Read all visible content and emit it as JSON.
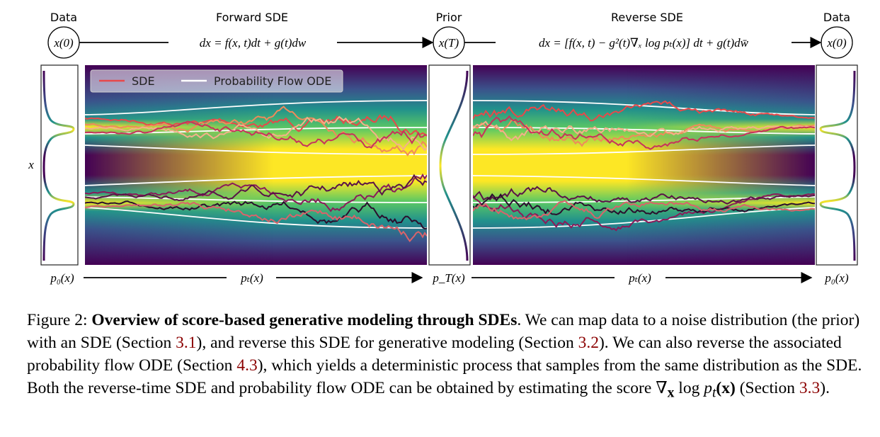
{
  "top_labels": {
    "data_left": "Data",
    "forward": "Forward SDE",
    "prior": "Prior",
    "reverse": "Reverse SDE",
    "data_right": "Data"
  },
  "nodes": {
    "x0_left": "x(0)",
    "xT": "x(T)",
    "x0_right": "x(0)"
  },
  "equations": {
    "forward": "dx = f(x, t)dt + g(t)dw",
    "reverse": "dx = [f(x, t) − g²(t)∇ₓ log pₜ(x)] dt + g(t)dw̄"
  },
  "y_axis_label": "x",
  "legend": {
    "sde": "SDE",
    "ode": "Probability Flow ODE"
  },
  "bottom_labels": {
    "p0_left": "p₀(x)",
    "pt_left": "pₜ(x)",
    "pT": "p_T(x)",
    "pt_right": "pₜ(x)",
    "p0_right": "p₀(x)"
  },
  "colors": {
    "sde_legend": "#e8484a",
    "ode_line": "#ffffff",
    "density_low": "#440154",
    "density_mid": "#21918c",
    "density_high": "#fde725"
  },
  "caption": {
    "prefix": "Figure 2: ",
    "title": "Overview of score-based generative modeling through SDEs",
    "text1": ". We can map data to a noise distribution (the prior) with an SDE (Section ",
    "ref1": "3.1",
    "text2": "), and reverse this SDE for generative modeling (Section ",
    "ref2": "3.2",
    "text3": "). We can also reverse the associated probability flow ODE (Section ",
    "ref3": "4.3",
    "text4": "), which yields a deterministic process that samples from the same distribution as the SDE. Both the reverse-time SDE and probability flow ODE can be obtained by estimating the score ",
    "score_nabla": "∇",
    "score_sub": "x",
    "score_log": " log ",
    "score_p": "p",
    "score_t": "t",
    "score_arg": "(x)",
    "text5": " (Section ",
    "ref4": "3.3",
    "text6": ")."
  }
}
